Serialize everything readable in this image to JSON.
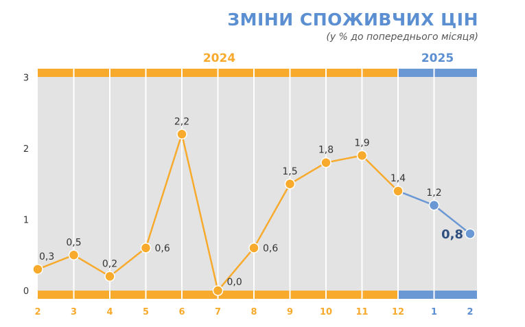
{
  "header": {
    "title": "ЗМІНИ СПОЖИВЧИХ ЦІН",
    "subtitle": "(у % до попереднього місяця)"
  },
  "colors": {
    "orange": "#f7aa2c",
    "blue": "#6a98d4",
    "plot_bg": "#e3e3e3",
    "blue_text": "#5b8fd1",
    "dark_label": "#2f4f7f"
  },
  "chart_data": {
    "type": "line",
    "title": "ЗМІНИ СПОЖИВЧИХ ЦІН",
    "subtitle": "(у % до попереднього місяця)",
    "years": [
      "2024",
      "2025"
    ],
    "categories": [
      "2",
      "3",
      "4",
      "5",
      "6",
      "7",
      "8",
      "9",
      "10",
      "11",
      "12",
      "1",
      "2"
    ],
    "values": [
      0.3,
      0.5,
      0.2,
      0.6,
      2.2,
      0.0,
      0.6,
      1.5,
      1.8,
      1.9,
      1.4,
      1.2,
      0.8
    ],
    "value_labels": [
      "0,3",
      "0,5",
      "0,2",
      "0,6",
      "2,2",
      "0,0",
      "0,6",
      "1,5",
      "1,8",
      "1,9",
      "1,4",
      "1,2",
      "0,8"
    ],
    "yticks": [
      "0",
      "1",
      "2",
      "3"
    ],
    "ylim": [
      0,
      3
    ],
    "grid": "vertical",
    "xlabel": "",
    "ylabel": ""
  }
}
